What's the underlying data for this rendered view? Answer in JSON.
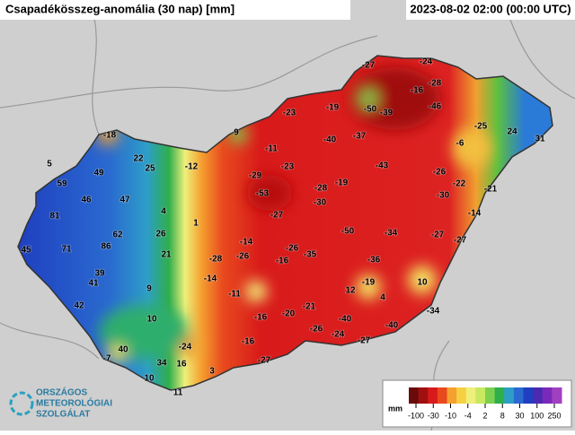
{
  "header": {
    "title": "Csapadékösszeg-anomália (30 nap) [mm]",
    "timestamp": "2023-08-02 02:00 (00:00 UTC)"
  },
  "stations": [
    -27,
    -24,
    -16,
    -28,
    -19,
    -50,
    -39,
    -46,
    -23,
    -18,
    9,
    -37,
    -40,
    -25,
    24,
    31,
    -6,
    5,
    -11,
    22,
    -43,
    49,
    25,
    -12,
    -23,
    -26,
    59,
    -29,
    -19,
    -22,
    -21,
    46,
    47,
    -53,
    -28,
    -30,
    -30,
    81,
    4,
    -27,
    -14,
    62,
    26,
    1,
    -50,
    -34,
    -27,
    -27,
    45,
    71,
    86,
    -14,
    -26,
    21,
    -28,
    -26,
    -16,
    -35,
    -36,
    39,
    41,
    -14,
    -19,
    10,
    9,
    12,
    4,
    -11,
    42,
    -21,
    -34,
    10,
    -16,
    -20,
    -40,
    -40,
    -26,
    -24,
    40,
    -24,
    -16,
    -27,
    -7,
    34,
    16,
    -27,
    3,
    10,
    11
  ],
  "legend": {
    "unit": "mm",
    "ticks": [
      -100,
      -30,
      -10,
      -4,
      2,
      8,
      30,
      100,
      250
    ]
  },
  "logo": {
    "lines": [
      "ORSZÁGOS",
      "METEOROLÓGIAI",
      "SZOLGÁLAT"
    ]
  }
}
